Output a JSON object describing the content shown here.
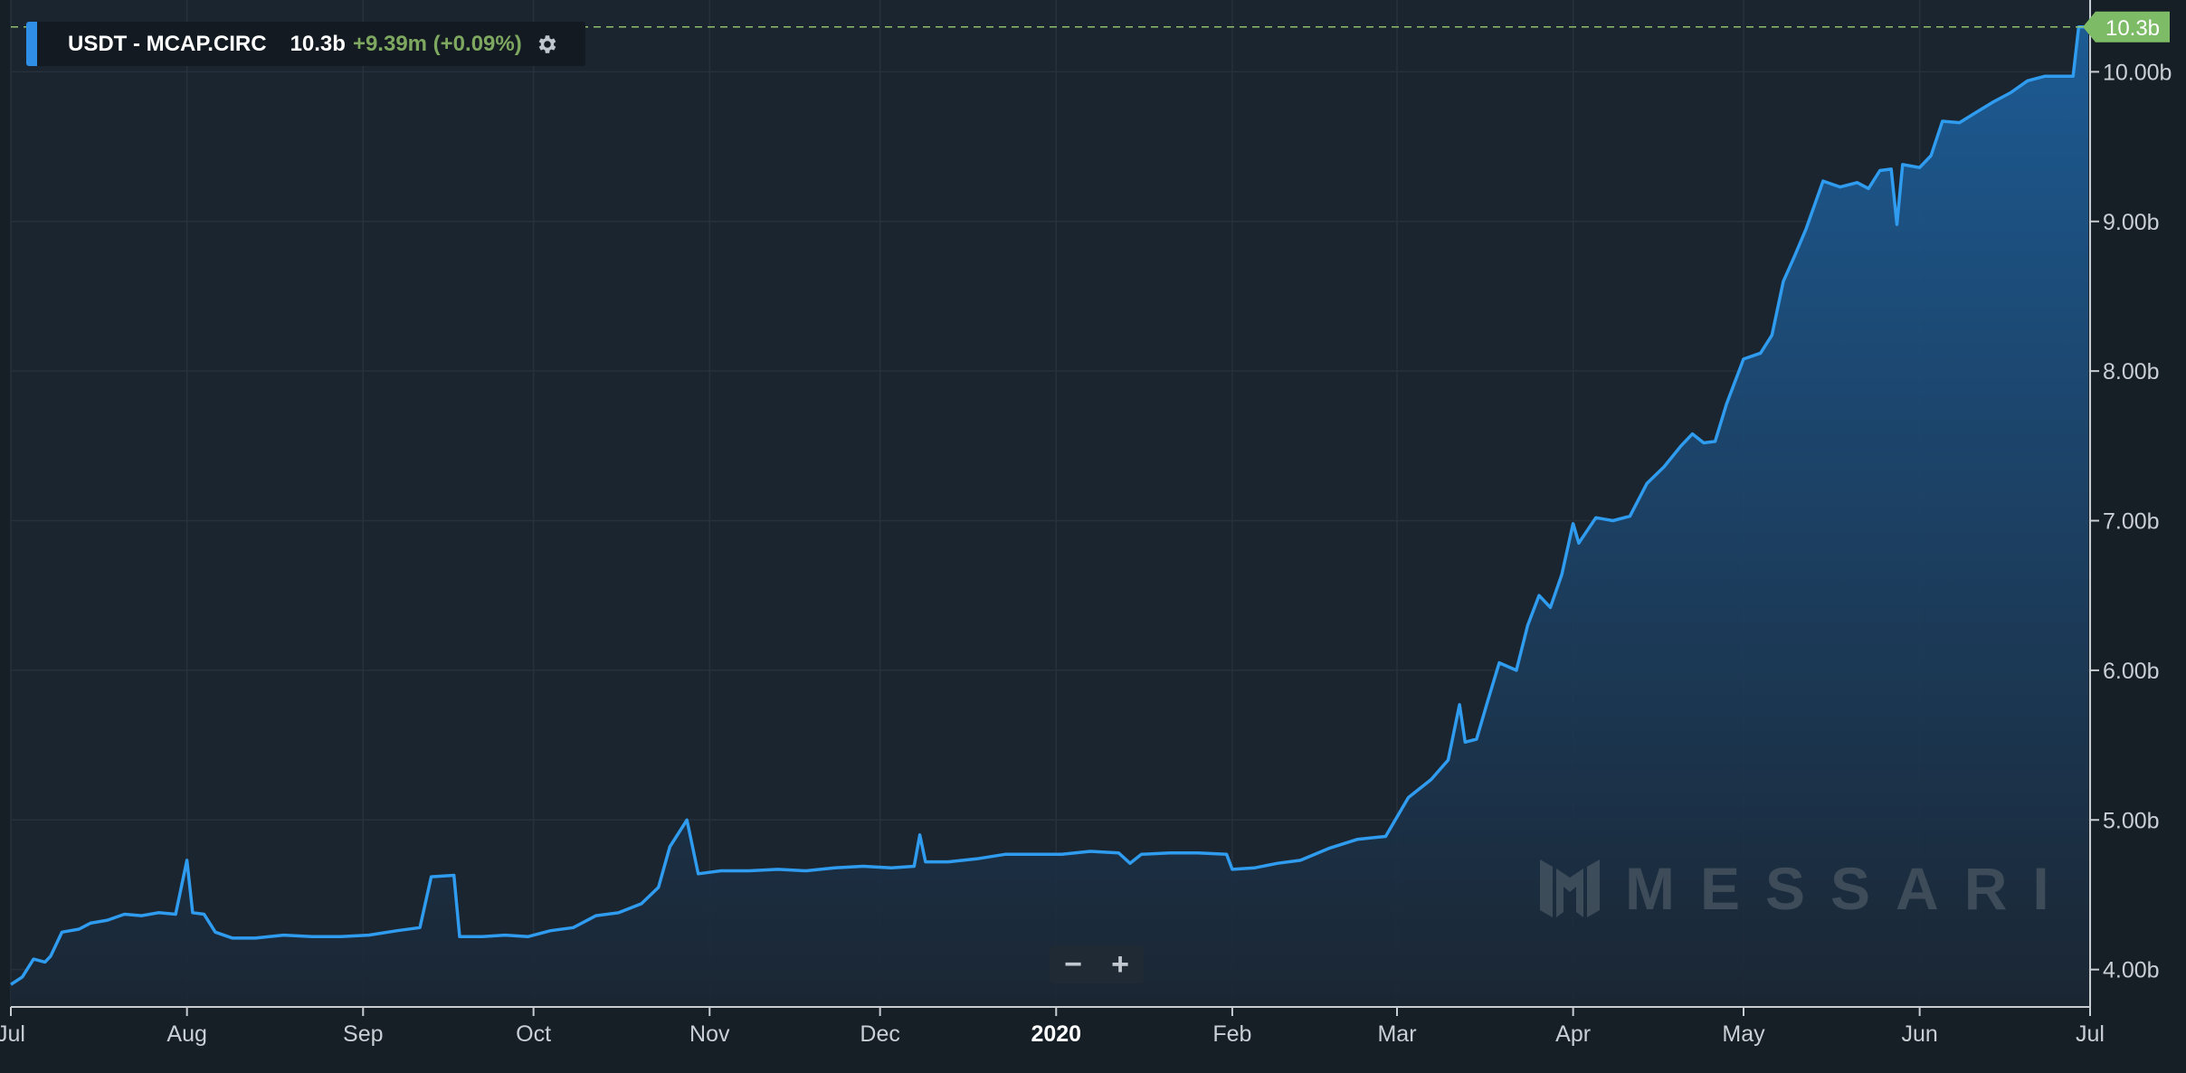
{
  "legend": {
    "name": "USDT - MCAP.CIRC",
    "value": "10.3b",
    "change": "+9.39m (+0.09%)",
    "settings_icon": "gear-icon"
  },
  "price_tag": "10.3b",
  "zoom": {
    "out_label": "−",
    "in_label": "+"
  },
  "watermark": {
    "text": "MESSARI",
    "logo_icon": "messari-logo-icon"
  },
  "colors": {
    "line": "#2f9cf0",
    "area_top": "#1c5f9c",
    "area_bottom": "#1b2633",
    "price_tag": "#7dbb66",
    "reference_line": "#8fbf6a"
  },
  "chart_data": {
    "type": "area",
    "title": "",
    "xlabel": "",
    "ylabel": "",
    "x_range": [
      "2019-07-01",
      "2020-07-01"
    ],
    "ylim": [
      3.75,
      10.48
    ],
    "y_unit": "b",
    "grid": true,
    "x_ticks": [
      {
        "date": "2019-07-01",
        "label": "Jul",
        "bold": false
      },
      {
        "date": "2019-08-01",
        "label": "Aug",
        "bold": false
      },
      {
        "date": "2019-09-01",
        "label": "Sep",
        "bold": false
      },
      {
        "date": "2019-10-01",
        "label": "Oct",
        "bold": false
      },
      {
        "date": "2019-11-01",
        "label": "Nov",
        "bold": false
      },
      {
        "date": "2019-12-01",
        "label": "Dec",
        "bold": false
      },
      {
        "date": "2020-01-01",
        "label": "2020",
        "bold": true
      },
      {
        "date": "2020-02-01",
        "label": "Feb",
        "bold": false
      },
      {
        "date": "2020-03-01",
        "label": "Mar",
        "bold": false
      },
      {
        "date": "2020-04-01",
        "label": "Apr",
        "bold": false
      },
      {
        "date": "2020-05-01",
        "label": "May",
        "bold": false
      },
      {
        "date": "2020-06-01",
        "label": "Jun",
        "bold": false
      },
      {
        "date": "2020-07-01",
        "label": "Jul",
        "bold": false
      }
    ],
    "y_ticks": [
      {
        "value": 4,
        "label": "4.00b"
      },
      {
        "value": 5,
        "label": "5.00b"
      },
      {
        "value": 6,
        "label": "6.00b"
      },
      {
        "value": 7,
        "label": "7.00b"
      },
      {
        "value": 8,
        "label": "8.00b"
      },
      {
        "value": 9,
        "label": "9.00b"
      },
      {
        "value": 10,
        "label": "10.00b"
      }
    ],
    "series": [
      {
        "values": [
          [
            "2019-07-01",
            3.9
          ],
          [
            "2019-07-03",
            3.95
          ],
          [
            "2019-07-05",
            4.07
          ],
          [
            "2019-07-07",
            4.05
          ],
          [
            "2019-07-08",
            4.09
          ],
          [
            "2019-07-10",
            4.25
          ],
          [
            "2019-07-13",
            4.27
          ],
          [
            "2019-07-15",
            4.31
          ],
          [
            "2019-07-18",
            4.33
          ],
          [
            "2019-07-21",
            4.37
          ],
          [
            "2019-07-24",
            4.36
          ],
          [
            "2019-07-27",
            4.38
          ],
          [
            "2019-07-30",
            4.37
          ],
          [
            "2019-08-01",
            4.73
          ],
          [
            "2019-08-02",
            4.38
          ],
          [
            "2019-08-04",
            4.37
          ],
          [
            "2019-08-06",
            4.25
          ],
          [
            "2019-08-09",
            4.21
          ],
          [
            "2019-08-13",
            4.21
          ],
          [
            "2019-08-18",
            4.23
          ],
          [
            "2019-08-23",
            4.22
          ],
          [
            "2019-08-28",
            4.22
          ],
          [
            "2019-09-02",
            4.23
          ],
          [
            "2019-09-07",
            4.26
          ],
          [
            "2019-09-11",
            4.28
          ],
          [
            "2019-09-13",
            4.62
          ],
          [
            "2019-09-17",
            4.63
          ],
          [
            "2019-09-18",
            4.22
          ],
          [
            "2019-09-22",
            4.22
          ],
          [
            "2019-09-26",
            4.23
          ],
          [
            "2019-09-30",
            4.22
          ],
          [
            "2019-10-04",
            4.26
          ],
          [
            "2019-10-08",
            4.28
          ],
          [
            "2019-10-12",
            4.36
          ],
          [
            "2019-10-16",
            4.38
          ],
          [
            "2019-10-20",
            4.44
          ],
          [
            "2019-10-23",
            4.55
          ],
          [
            "2019-10-25",
            4.82
          ],
          [
            "2019-10-28",
            5.0
          ],
          [
            "2019-10-30",
            4.64
          ],
          [
            "2019-11-03",
            4.66
          ],
          [
            "2019-11-08",
            4.66
          ],
          [
            "2019-11-13",
            4.67
          ],
          [
            "2019-11-18",
            4.66
          ],
          [
            "2019-11-23",
            4.68
          ],
          [
            "2019-11-28",
            4.69
          ],
          [
            "2019-12-03",
            4.68
          ],
          [
            "2019-12-07",
            4.69
          ],
          [
            "2019-12-08",
            4.9
          ],
          [
            "2019-12-09",
            4.72
          ],
          [
            "2019-12-13",
            4.72
          ],
          [
            "2019-12-18",
            4.74
          ],
          [
            "2019-12-23",
            4.77
          ],
          [
            "2019-12-28",
            4.77
          ],
          [
            "2020-01-02",
            4.77
          ],
          [
            "2020-01-07",
            4.79
          ],
          [
            "2020-01-12",
            4.78
          ],
          [
            "2020-01-14",
            4.71
          ],
          [
            "2020-01-16",
            4.77
          ],
          [
            "2020-01-21",
            4.78
          ],
          [
            "2020-01-26",
            4.78
          ],
          [
            "2020-01-31",
            4.77
          ],
          [
            "2020-02-01",
            4.67
          ],
          [
            "2020-02-05",
            4.68
          ],
          [
            "2020-02-09",
            4.71
          ],
          [
            "2020-02-13",
            4.73
          ],
          [
            "2020-02-18",
            4.81
          ],
          [
            "2020-02-23",
            4.87
          ],
          [
            "2020-02-28",
            4.89
          ],
          [
            "2020-03-03",
            5.15
          ],
          [
            "2020-03-07",
            5.27
          ],
          [
            "2020-03-10",
            5.4
          ],
          [
            "2020-03-12",
            5.77
          ],
          [
            "2020-03-13",
            5.52
          ],
          [
            "2020-03-15",
            5.54
          ],
          [
            "2020-03-17",
            5.8
          ],
          [
            "2020-03-19",
            6.05
          ],
          [
            "2020-03-22",
            6.0
          ],
          [
            "2020-03-24",
            6.3
          ],
          [
            "2020-03-26",
            6.5
          ],
          [
            "2020-03-28",
            6.42
          ],
          [
            "2020-03-30",
            6.64
          ],
          [
            "2020-04-01",
            6.98
          ],
          [
            "2020-04-02",
            6.85
          ],
          [
            "2020-04-05",
            7.02
          ],
          [
            "2020-04-08",
            7.0
          ],
          [
            "2020-04-11",
            7.03
          ],
          [
            "2020-04-14",
            7.25
          ],
          [
            "2020-04-17",
            7.36
          ],
          [
            "2020-04-20",
            7.5
          ],
          [
            "2020-04-22",
            7.58
          ],
          [
            "2020-04-24",
            7.52
          ],
          [
            "2020-04-26",
            7.53
          ],
          [
            "2020-04-28",
            7.78
          ],
          [
            "2020-05-01",
            8.08
          ],
          [
            "2020-05-04",
            8.12
          ],
          [
            "2020-05-06",
            8.24
          ],
          [
            "2020-05-08",
            8.6
          ],
          [
            "2020-05-10",
            8.77
          ],
          [
            "2020-05-12",
            8.95
          ],
          [
            "2020-05-15",
            9.27
          ],
          [
            "2020-05-18",
            9.23
          ],
          [
            "2020-05-21",
            9.26
          ],
          [
            "2020-05-23",
            9.22
          ],
          [
            "2020-05-25",
            9.34
          ],
          [
            "2020-05-27",
            9.35
          ],
          [
            "2020-05-28",
            8.98
          ],
          [
            "2020-05-29",
            9.38
          ],
          [
            "2020-06-01",
            9.36
          ],
          [
            "2020-06-03",
            9.44
          ],
          [
            "2020-06-05",
            9.67
          ],
          [
            "2020-06-08",
            9.66
          ],
          [
            "2020-06-11",
            9.73
          ],
          [
            "2020-06-14",
            9.8
          ],
          [
            "2020-06-17",
            9.86
          ],
          [
            "2020-06-20",
            9.94
          ],
          [
            "2020-06-23",
            9.97
          ],
          [
            "2020-06-26",
            9.97
          ],
          [
            "2020-06-28",
            9.97
          ],
          [
            "2020-06-29",
            10.3
          ]
        ]
      }
    ],
    "last_value": 10.3,
    "last_value_label": "10.3b"
  }
}
